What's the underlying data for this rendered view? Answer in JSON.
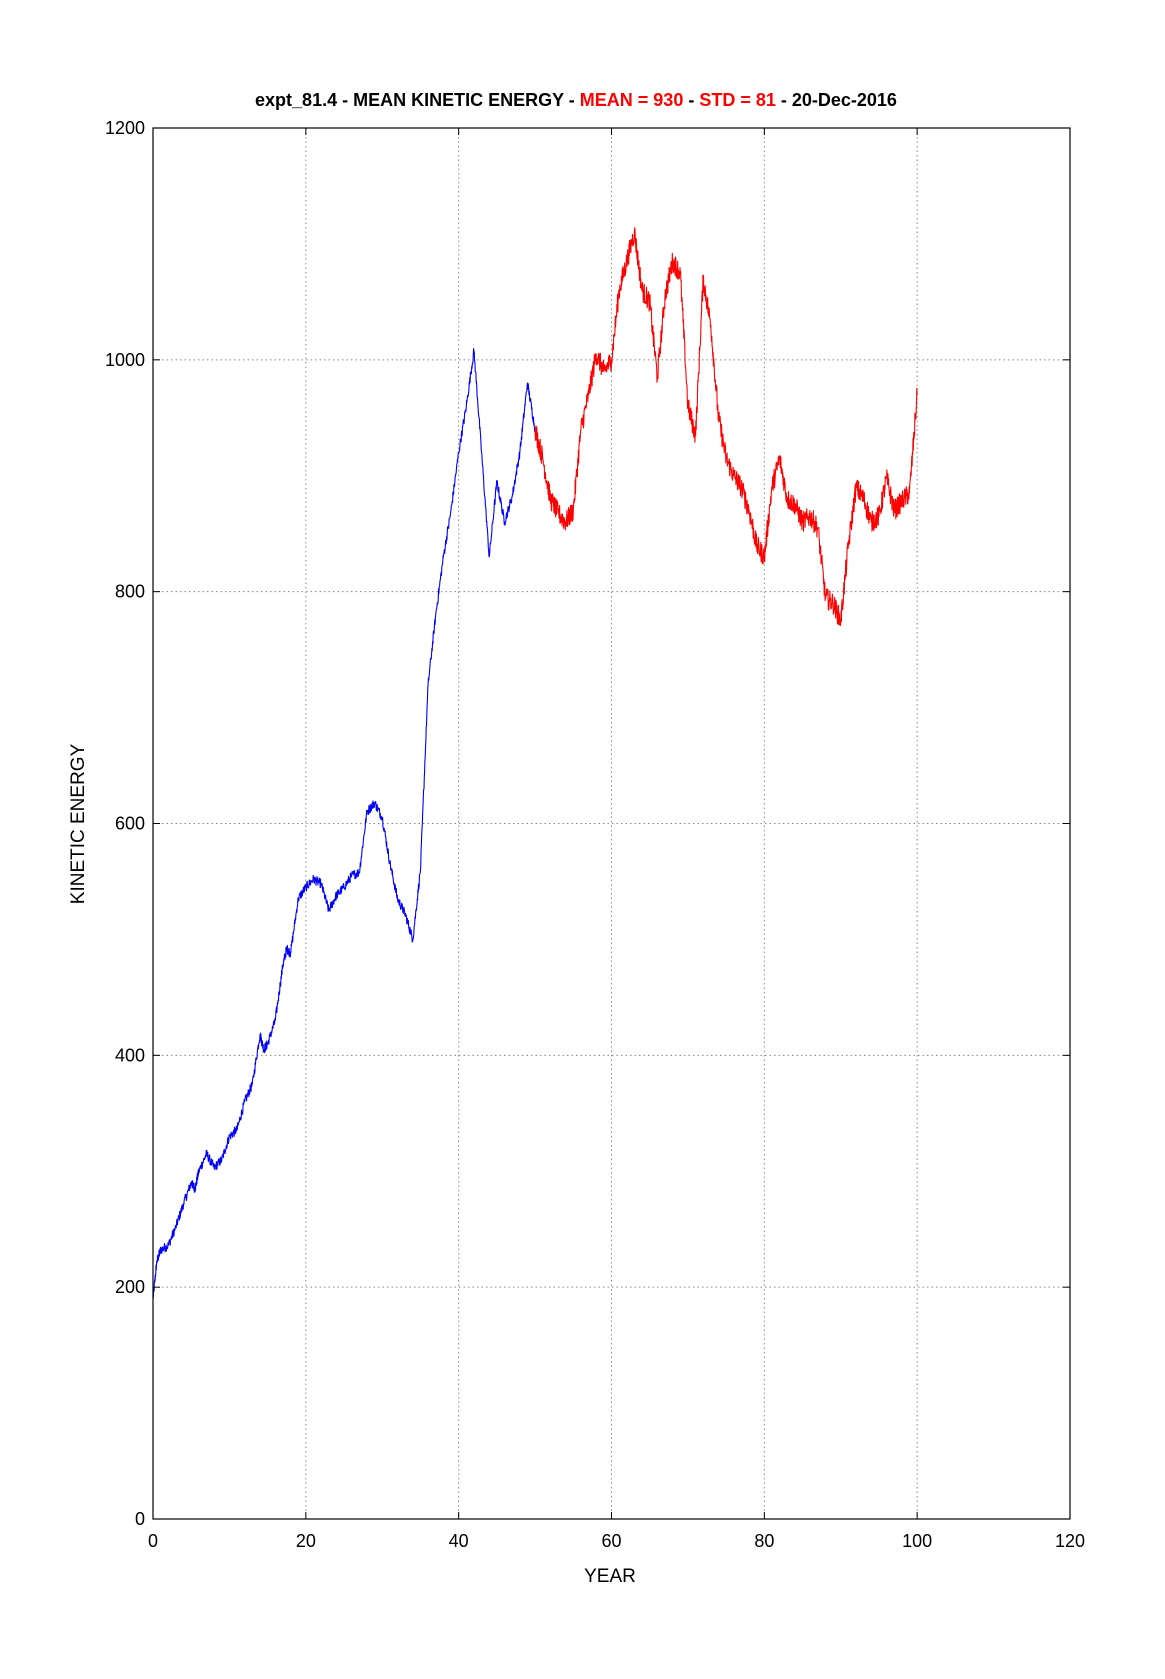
{
  "title": {
    "part1": "expt_81.4 - MEAN KINETIC ENERGY - ",
    "mean_label": "MEAN =   930",
    "sep": " - ",
    "std_label": "STD =   81",
    "part3": " - 20-Dec-2016"
  },
  "chart_data": {
    "type": "line",
    "xlabel": "YEAR",
    "ylabel": "KINETIC ENERGY",
    "xlim": [
      0,
      120
    ],
    "ylim": [
      0,
      1200
    ],
    "xticks": [
      0,
      20,
      40,
      60,
      80,
      100,
      120
    ],
    "yticks": [
      0,
      200,
      400,
      600,
      800,
      1000,
      1200
    ],
    "grid": true,
    "colors": {
      "spinup": "#0000ff",
      "analysis": "#ff0000",
      "title_highlight": "#ff0000",
      "grid": "#888888"
    },
    "series": [
      {
        "color": "#0000ff",
        "x": [
          0,
          0.5,
          1,
          2,
          3,
          4,
          5,
          5.5,
          6,
          7,
          8,
          9,
          10,
          11,
          12,
          13,
          14,
          14.5,
          15,
          16,
          17,
          17.5,
          18,
          19,
          20,
          21,
          22,
          23,
          24,
          25,
          26,
          27,
          28,
          29,
          30,
          31,
          32,
          33,
          34,
          35,
          36,
          37,
          38,
          39,
          40,
          41,
          42,
          43,
          44,
          45,
          46,
          47,
          48,
          49,
          50
        ],
        "y": [
          190,
          222,
          232,
          236,
          252,
          272,
          290,
          285,
          300,
          315,
          303,
          310,
          330,
          336,
          360,
          375,
          418,
          405,
          410,
          430,
          478,
          492,
          488,
          535,
          545,
          552,
          548,
          525,
          538,
          545,
          555,
          558,
          610,
          618,
          605,
          566,
          535,
          522,
          500,
          560,
          720,
          780,
          830,
          870,
          920,
          960,
          1008,
          920,
          830,
          895,
          860,
          882,
          920,
          980,
          940
        ]
      },
      {
        "color": "#ff0000",
        "x": [
          50,
          51,
          52,
          53,
          54,
          55,
          56,
          57,
          58,
          59,
          60,
          61,
          62,
          63,
          64,
          65,
          66,
          67,
          68,
          69,
          70,
          71,
          72,
          73,
          74,
          75,
          76,
          77,
          78,
          79,
          80,
          81,
          82,
          83,
          84,
          85,
          86,
          87,
          88,
          89,
          90,
          91,
          92,
          93,
          94,
          95,
          96,
          97,
          98,
          99,
          100
        ],
        "y": [
          940,
          915,
          880,
          868,
          860,
          870,
          940,
          970,
          1005,
          990,
          1000,
          1060,
          1085,
          1110,
          1060,
          1050,
          985,
          1055,
          1085,
          1075,
          960,
          935,
          1070,
          1030,
          950,
          915,
          900,
          890,
          870,
          840,
          830,
          890,
          915,
          880,
          875,
          860,
          865,
          855,
          795,
          790,
          775,
          840,
          890,
          880,
          860,
          865,
          898,
          870,
          878,
          885,
          970
        ]
      }
    ]
  }
}
